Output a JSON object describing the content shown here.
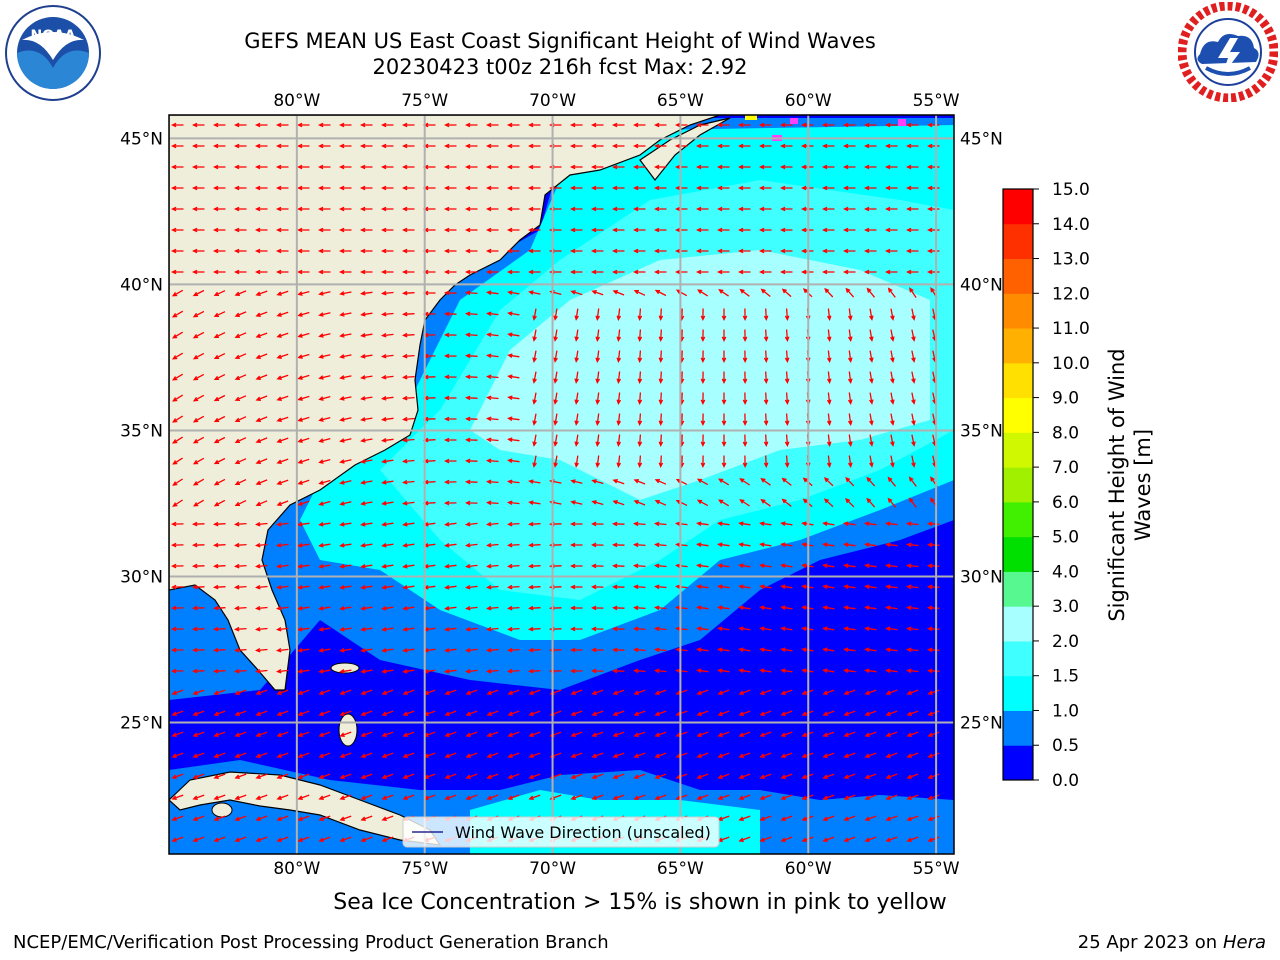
{
  "header": {
    "title_line1": "GEFS MEAN US East Coast Significant Height of Wind Waves",
    "title_line2": "20230423 t00z 216h fcst   Max: 2.92"
  },
  "logos": {
    "left": "noaa-logo",
    "right": "nws-logo",
    "left_text": "NOAA"
  },
  "map": {
    "lon_labels": [
      "80°W",
      "75°W",
      "70°W",
      "65°W",
      "60°W",
      "55°W"
    ],
    "lat_labels": [
      "45°N",
      "40°N",
      "35°N",
      "30°N",
      "25°N"
    ],
    "lon_values": [
      -80,
      -75,
      -70,
      -65,
      -60,
      -55
    ],
    "lat_values": [
      45,
      40,
      35,
      30,
      25
    ],
    "extent": {
      "lon": [
        -85,
        -54.3
      ],
      "lat": [
        20.5,
        45.8
      ]
    },
    "legend_label": "Wind Wave Direction (unscaled)",
    "colors": {
      "land": "#efeedb",
      "arrow": "#ff0000",
      "grid": "#b0b0b0"
    }
  },
  "colorbar": {
    "label": "Significant Height of Wind Waves [m]",
    "ticks": [
      "0.0",
      "0.5",
      "1.0",
      "1.5",
      "2.0",
      "3.0",
      "4.0",
      "5.0",
      "6.0",
      "7.0",
      "8.0",
      "9.0",
      "10.0",
      "11.0",
      "12.0",
      "13.0",
      "14.0",
      "15.0"
    ],
    "colors": [
      "#0000ff",
      "#0080ff",
      "#00ffff",
      "#40ffff",
      "#a8ffff",
      "#58f890",
      "#00e000",
      "#40f000",
      "#a0f000",
      "#d0f800",
      "#ffff00",
      "#ffe000",
      "#ffb000",
      "#ff8c00",
      "#ff6000",
      "#ff3000",
      "#ff0000"
    ]
  },
  "footer": {
    "ice_note": "Sea Ice Concentration > 15% is shown in pink to yellow",
    "credit_left": "NCEP/EMC/Verification Post Processing Product Generation Branch",
    "credit_date": "25 Apr 2023 on ",
    "credit_system": "Hera"
  }
}
